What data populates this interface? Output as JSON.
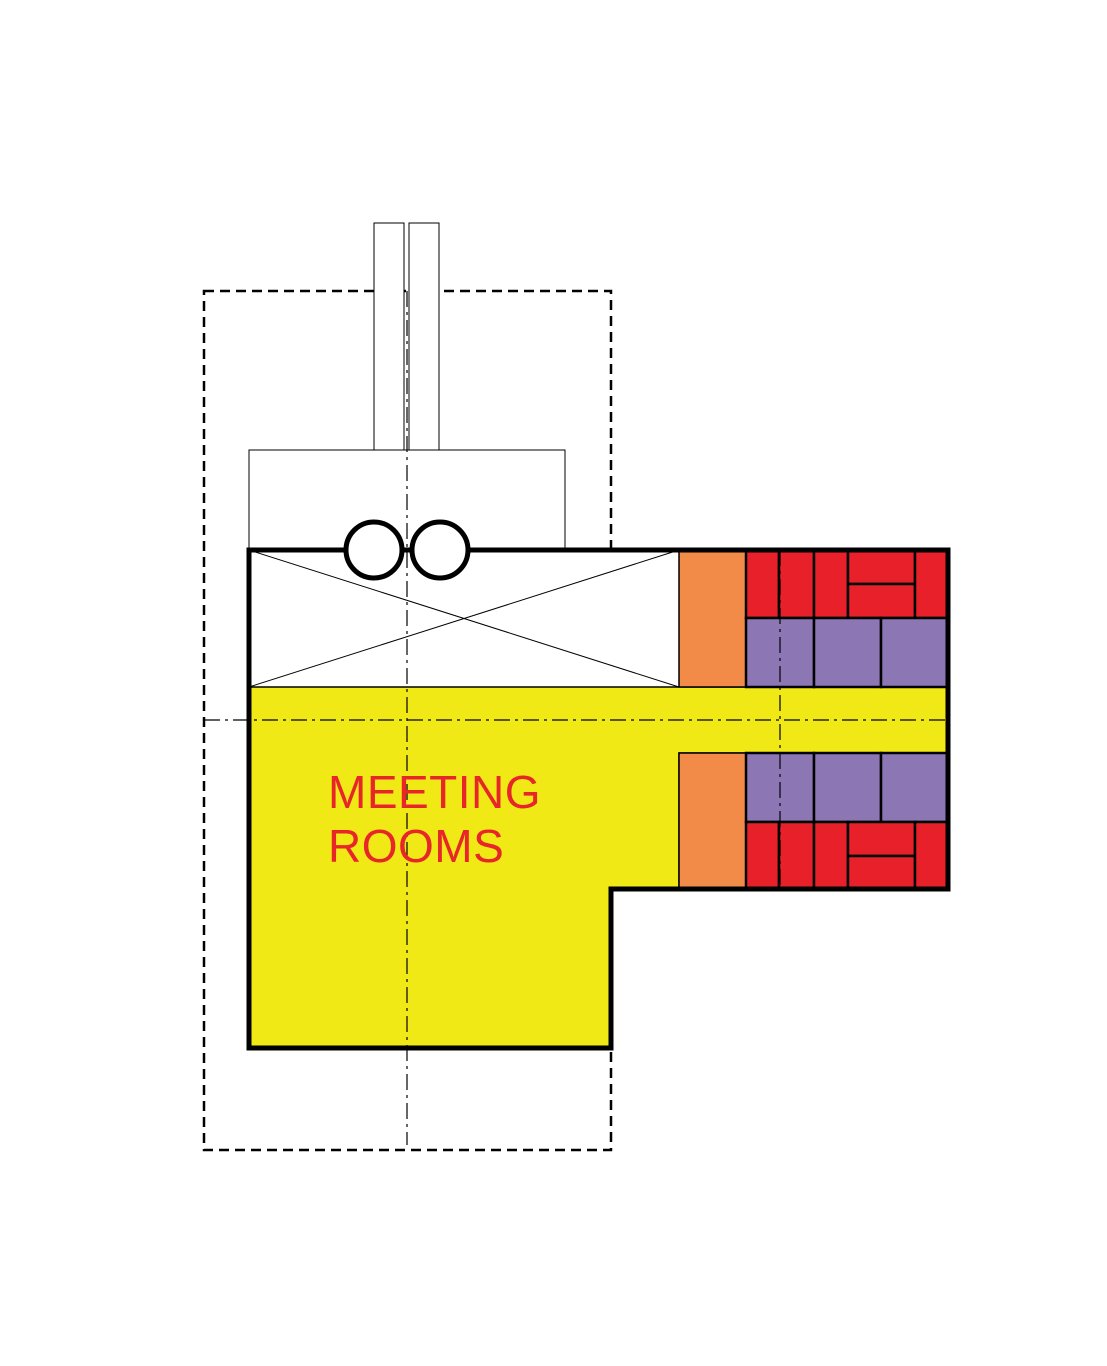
{
  "labels": {
    "meeting_rooms_line1": "MEETING",
    "meeting_rooms_line2": "ROOMS"
  },
  "colors": {
    "meeting_area": "#f0e916",
    "room_red": "#e8202a",
    "room_purple": "#8c76b4",
    "core_orange": "#f28a48",
    "outline": "#000000",
    "label": "#e8262a"
  }
}
